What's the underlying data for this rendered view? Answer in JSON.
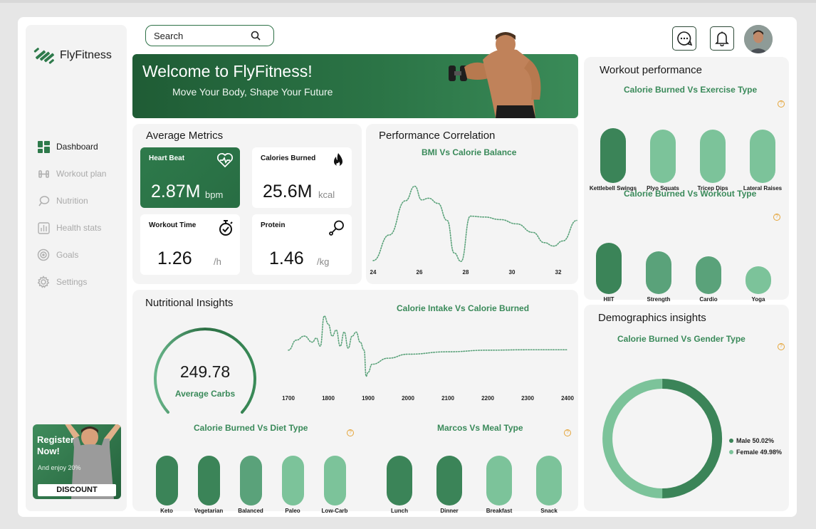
{
  "app": {
    "name": "FlyFitness"
  },
  "search": {
    "placeholder": "Search"
  },
  "sidebar": {
    "items": [
      {
        "label": "Dashboard",
        "icon": "dashboard-icon",
        "active": true
      },
      {
        "label": "Workout plan",
        "icon": "dumbbell-icon",
        "active": false
      },
      {
        "label": "Nutrition",
        "icon": "nutrition-icon",
        "active": false
      },
      {
        "label": "Health stats",
        "icon": "bar-chart-icon",
        "active": false
      },
      {
        "label": "Goals",
        "icon": "target-icon",
        "active": false
      },
      {
        "label": "Settings",
        "icon": "gear-icon",
        "active": false
      }
    ]
  },
  "promo": {
    "title": "Register Now!",
    "subtitle": "And enjoy 20%",
    "button": "DISCOUNT"
  },
  "banner": {
    "title": "Welcome to FlyFitness!",
    "subtitle": "Move Your Body, Shape Your Future"
  },
  "average_metrics": {
    "title": "Average Metrics",
    "cards": [
      {
        "label": "Heart Beat",
        "value": "2.87M",
        "unit": "bpm",
        "icon": "heart-rate-icon"
      },
      {
        "label": "Calories Burned",
        "value": "25.6M",
        "unit": "kcal",
        "icon": "flame-icon"
      },
      {
        "label": "Workout Time",
        "value": "1.26",
        "unit": "/h",
        "icon": "stopwatch-icon"
      },
      {
        "label": "Protein",
        "value": "1.46",
        "unit": "/kg",
        "icon": "drumstick-icon"
      }
    ]
  },
  "performance_correlation": {
    "title": "Performance Correlation",
    "subtitle": "BMI Vs Calorie  Balance",
    "x_ticks": [
      "24",
      "26",
      "28",
      "30",
      "32"
    ]
  },
  "nutritional_insights": {
    "title": "Nutritional Insights",
    "gauge_value": "249.78",
    "gauge_label": "Average Carbs",
    "line_subtitle": "Calorie Intake Vs Calorie Burned",
    "line_ticks": [
      "1700",
      "1800",
      "1900",
      "2000",
      "2100",
      "2200",
      "2300",
      "2400"
    ],
    "diet_subtitle": "Calorie Burned Vs Diet Type",
    "meal_subtitle": "Marcos Vs Meal Type"
  },
  "workout_performance": {
    "title": "Workout performance",
    "exercise_subtitle": "Calorie Burned Vs Exercise Type",
    "workout_subtitle": "Calorie Burned Vs Workout Type"
  },
  "demographics": {
    "title": "Demographics insights",
    "subtitle": "Calorie Burned Vs Gender Type"
  },
  "colors": {
    "dark": "#3b8458",
    "mid": "#5aa27a",
    "light": "#7cc39a",
    "accent": "#2b7446"
  },
  "chart_data": [
    {
      "type": "line",
      "title": "BMI Vs Calorie  Balance",
      "x": [
        23.8,
        24.5,
        25.2,
        25.6,
        25.9,
        26.2,
        26.6,
        27.0,
        27.3,
        27.6,
        28.0,
        28.6,
        29.3,
        30.0,
        30.7,
        31.2,
        31.6,
        32.0,
        32.6
      ],
      "values": [
        0.05,
        0.35,
        0.75,
        0.92,
        0.76,
        0.78,
        0.72,
        0.52,
        0.14,
        0.04,
        0.57,
        0.56,
        0.53,
        0.48,
        0.38,
        0.26,
        0.22,
        0.28,
        0.52
      ],
      "xlim": [
        23.8,
        32.6
      ],
      "ylim": [
        0,
        1
      ]
    },
    {
      "type": "line",
      "title": "Calorie Intake Vs Calorie Burned",
      "x": [
        1700,
        1720,
        1740,
        1760,
        1770,
        1780,
        1790,
        1800,
        1810,
        1820,
        1830,
        1840,
        1850,
        1860,
        1870,
        1880,
        1890,
        1895,
        1900,
        1910,
        1950,
        2000,
        2100,
        2200,
        2300,
        2400
      ],
      "values": [
        0.1,
        0.35,
        0.45,
        0.3,
        0.4,
        0.2,
        0.95,
        0.75,
        0.45,
        0.6,
        0.2,
        0.55,
        0.15,
        0.45,
        0.55,
        0.3,
        0.1,
        -0.55,
        -0.45,
        -0.25,
        -0.1,
        0.0,
        0.06,
        0.1,
        0.11,
        0.11
      ],
      "xlim": [
        1700,
        2400
      ],
      "ylim": [
        -0.7,
        1.0
      ]
    },
    {
      "type": "bar",
      "title": "Calorie Burned Vs Exercise Type",
      "categories": [
        "Kettlebell Swings",
        "Plyo Squats",
        "Tricep Dips",
        "Lateral Raises"
      ],
      "values": [
        1.0,
        0.98,
        0.98,
        0.98
      ]
    },
    {
      "type": "bar",
      "title": "Calorie Burned Vs Workout Type",
      "categories": [
        "HIIT",
        "Strength",
        "Cardio",
        "Yoga"
      ],
      "values": [
        1.0,
        0.83,
        0.74,
        0.54
      ]
    },
    {
      "type": "bar",
      "title": "Calorie Burned Vs Diet Type",
      "categories": [
        "Keto",
        "Vegetarian",
        "Balanced",
        "Paleo",
        "Low-Carb"
      ],
      "values": [
        1.0,
        1.0,
        1.0,
        1.0,
        1.0
      ]
    },
    {
      "type": "bar",
      "title": "Marcos Vs Meal Type",
      "categories": [
        "Lunch",
        "Dinner",
        "Breakfast",
        "Snack"
      ],
      "values": [
        1.0,
        1.0,
        1.0,
        1.0
      ]
    },
    {
      "type": "pie",
      "title": "Calorie Burned Vs Gender Type",
      "categories": [
        "Male",
        "Female"
      ],
      "labels": [
        "Male 50.02%",
        "Female 49.98%"
      ],
      "values": [
        50.02,
        49.98
      ],
      "colors": [
        "#3b8458",
        "#7cc39a"
      ],
      "legend": "right"
    }
  ]
}
